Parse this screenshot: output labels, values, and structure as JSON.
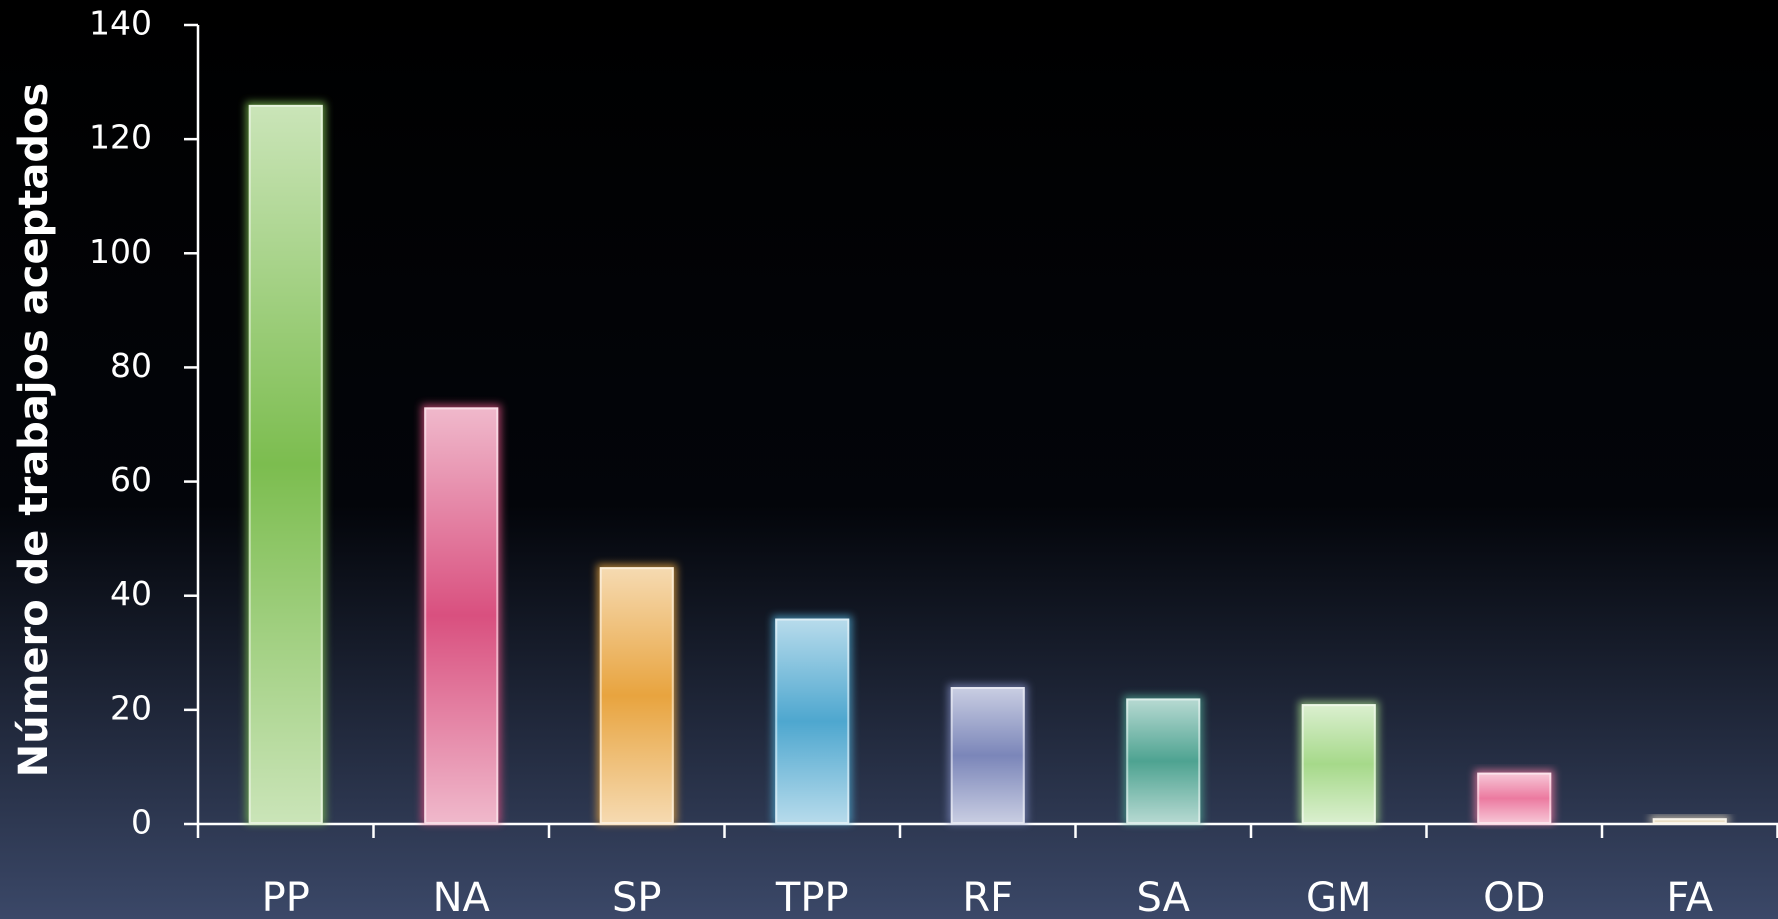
{
  "chart_data": {
    "type": "bar",
    "y_label": "Número de trabajos aceptados",
    "categories": [
      "PP",
      "NA",
      "SP",
      "TPP",
      "RF",
      "SA",
      "GM",
      "OD",
      "FA"
    ],
    "values": [
      126,
      73,
      45,
      36,
      24,
      22,
      21,
      9,
      1
    ],
    "colors": [
      "#7cbd4f",
      "#d9507f",
      "#e8a43f",
      "#4ea7cf",
      "#7b86b9",
      "#4ea391",
      "#a6d98a",
      "#ec7aa0",
      "#e9dcc0"
    ],
    "ylim": [
      0,
      140
    ],
    "yticks": [
      0,
      20,
      40,
      60,
      80,
      100,
      120,
      140
    ],
    "grid": false
  }
}
